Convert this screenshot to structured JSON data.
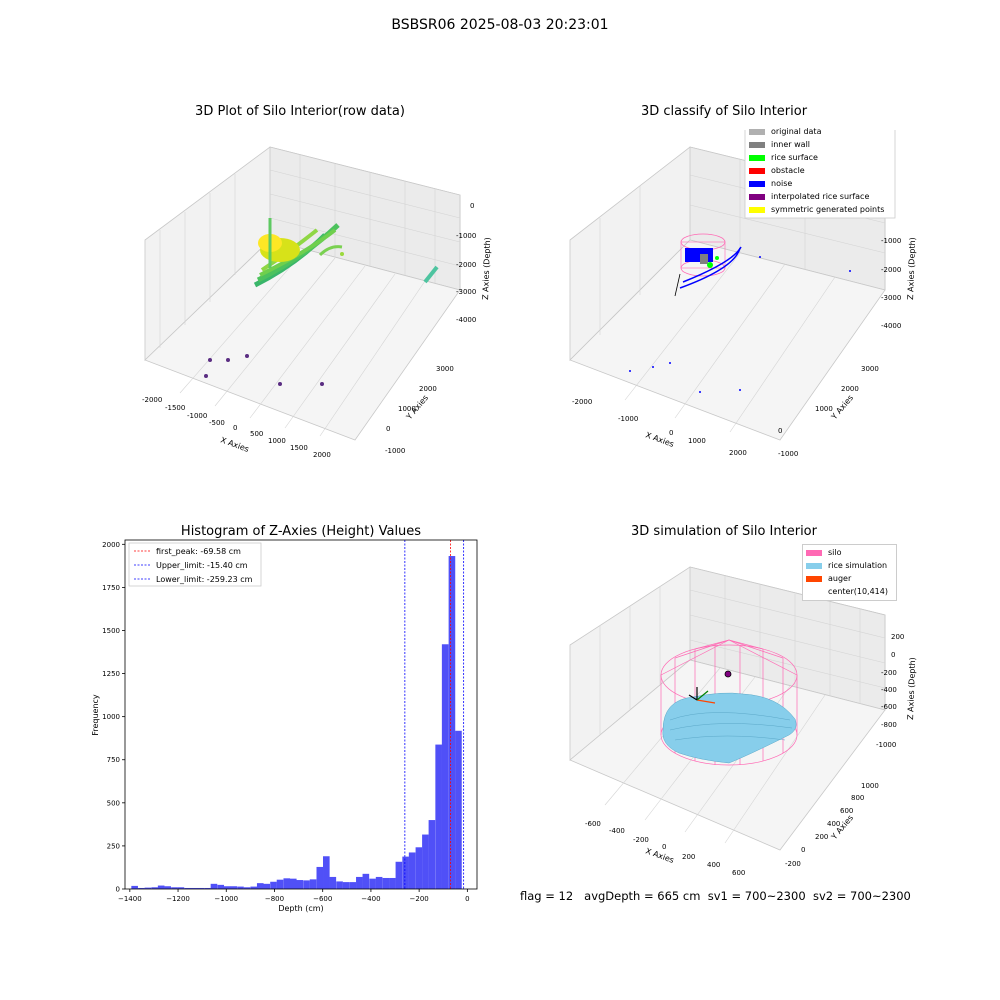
{
  "figure": {
    "suptitle": "BSBSR06 2025-08-03 20:23:01",
    "status_line": {
      "flag": "flag = 12",
      "avg_depth": "avgDepth = 665 cm",
      "sv1": "sv1 = 700~2300",
      "sv2": "sv2 = 700~2300"
    }
  },
  "colors": {
    "hist_bar": "#5050f7",
    "first_peak": "#ff0000",
    "limits": "#0000ff",
    "silo": "#ff69b4",
    "rice_sim": "#87ceeb",
    "auger": "#ff4500"
  },
  "chart_data": [
    {
      "type": "scatter",
      "projection": "3d",
      "title": "3D Plot of Silo Interior(row data)",
      "xlabel": "X Axies",
      "ylabel": "Y Axies",
      "zlabel": "Z Axies (Depth)",
      "x_ticks": [
        "-2000",
        "-1500",
        "-1000",
        "-500",
        "0",
        "500",
        "1000",
        "1500",
        "2000"
      ],
      "y_ticks": [
        "-1000",
        "0",
        "1000",
        "2000",
        "3000"
      ],
      "z_ticks": [
        "0",
        "-1000",
        "-2000",
        "-3000",
        "-4000"
      ],
      "colormap": "viridis (colored by depth)"
    },
    {
      "type": "scatter",
      "projection": "3d",
      "title": "3D classify of Silo Interior",
      "xlabel": "X Axies",
      "ylabel": "Y Axies",
      "zlabel": "Z Axies (Depth)",
      "x_ticks": [
        "-2000",
        "-1000",
        "0",
        "1000",
        "2000"
      ],
      "y_ticks": [
        "-1000",
        "0",
        "1000",
        "2000",
        "3000"
      ],
      "z_ticks": [
        "-1000",
        "-2000",
        "-3000",
        "-4000"
      ],
      "legend_position": "top-right",
      "legend": [
        {
          "label": "original data",
          "color": "#b0b0b0"
        },
        {
          "label": "inner wall",
          "color": "#808080"
        },
        {
          "label": "rice surface",
          "color": "#00ff00"
        },
        {
          "label": "obstacle",
          "color": "#ff0000"
        },
        {
          "label": "noise",
          "color": "#0000ff"
        },
        {
          "label": "interpolated rice surface",
          "color": "#800080"
        },
        {
          "label": "symmetric generated points",
          "color": "#ffff00"
        }
      ]
    },
    {
      "type": "bar",
      "title": "Histogram of Z-Axies (Height) Values",
      "xlabel": "Depth (cm)",
      "ylabel": "Frequency",
      "xlim": [
        -1420,
        40
      ],
      "ylim": [
        0,
        2025
      ],
      "x_ticks": [
        -1400,
        -1200,
        -1000,
        -800,
        -600,
        -400,
        -200,
        0
      ],
      "y_ticks": [
        0,
        250,
        500,
        750,
        1000,
        1250,
        1500,
        1750,
        2000
      ],
      "bin_width": 27.4,
      "bins": [
        {
          "x": -1380,
          "count": 18
        },
        {
          "x": -1352,
          "count": 6
        },
        {
          "x": -1325,
          "count": 8
        },
        {
          "x": -1297,
          "count": 10
        },
        {
          "x": -1270,
          "count": 20
        },
        {
          "x": -1243,
          "count": 16
        },
        {
          "x": -1215,
          "count": 10
        },
        {
          "x": -1188,
          "count": 10
        },
        {
          "x": -1160,
          "count": 6
        },
        {
          "x": -1133,
          "count": 6
        },
        {
          "x": -1106,
          "count": 6
        },
        {
          "x": -1078,
          "count": 6
        },
        {
          "x": -1051,
          "count": 30
        },
        {
          "x": -1023,
          "count": 24
        },
        {
          "x": -996,
          "count": 16
        },
        {
          "x": -969,
          "count": 16
        },
        {
          "x": -941,
          "count": 14
        },
        {
          "x": -914,
          "count": 10
        },
        {
          "x": -886,
          "count": 14
        },
        {
          "x": -859,
          "count": 34
        },
        {
          "x": -832,
          "count": 30
        },
        {
          "x": -804,
          "count": 42
        },
        {
          "x": -777,
          "count": 54
        },
        {
          "x": -749,
          "count": 62
        },
        {
          "x": -722,
          "count": 60
        },
        {
          "x": -695,
          "count": 52
        },
        {
          "x": -667,
          "count": 50
        },
        {
          "x": -640,
          "count": 56
        },
        {
          "x": -612,
          "count": 128
        },
        {
          "x": -585,
          "count": 190
        },
        {
          "x": -558,
          "count": 70
        },
        {
          "x": -530,
          "count": 44
        },
        {
          "x": -503,
          "count": 40
        },
        {
          "x": -475,
          "count": 40
        },
        {
          "x": -448,
          "count": 70
        },
        {
          "x": -421,
          "count": 88
        },
        {
          "x": -393,
          "count": 60
        },
        {
          "x": -366,
          "count": 70
        },
        {
          "x": -338,
          "count": 64
        },
        {
          "x": -311,
          "count": 64
        },
        {
          "x": -284,
          "count": 158
        },
        {
          "x": -256,
          "count": 188
        },
        {
          "x": -229,
          "count": 212
        },
        {
          "x": -201,
          "count": 242
        },
        {
          "x": -174,
          "count": 316
        },
        {
          "x": -147,
          "count": 400
        },
        {
          "x": -119,
          "count": 838
        },
        {
          "x": -92,
          "count": 1420
        },
        {
          "x": -64,
          "count": 1932
        },
        {
          "x": -37,
          "count": 918
        }
      ],
      "vlines": [
        {
          "label": "first_peak: -69.58 cm",
          "x": -69.58,
          "color": "#ff0000"
        },
        {
          "label": "Upper_limit: -15.40 cm",
          "x": -15.4,
          "color": "#0000ff"
        },
        {
          "label": "Lower_limit: -259.23 cm",
          "x": -259.23,
          "color": "#0000ff"
        }
      ],
      "legend_position": "top-left"
    },
    {
      "type": "surface",
      "projection": "3d",
      "title": "3D simulation of Silo Interior",
      "xlabel": "X Axies",
      "ylabel": "Y Axies",
      "zlabel": "Z Axies (Depth)",
      "x_ticks": [
        "-600",
        "-400",
        "-200",
        "0",
        "200",
        "400",
        "600"
      ],
      "y_ticks": [
        "-200",
        "0",
        "200",
        "400",
        "600",
        "800",
        "1000"
      ],
      "z_ticks": [
        "200",
        "0",
        "-200",
        "-400",
        "-600",
        "-800",
        "-1000"
      ],
      "legend_position": "top-right",
      "legend": [
        {
          "label": "silo",
          "color": "#ff69b4"
        },
        {
          "label": "rice simulation",
          "color": "#87ceeb"
        },
        {
          "label": "auger",
          "color": "#ff4500"
        },
        {
          "label": "center(10,414)",
          "color": ""
        }
      ]
    }
  ]
}
